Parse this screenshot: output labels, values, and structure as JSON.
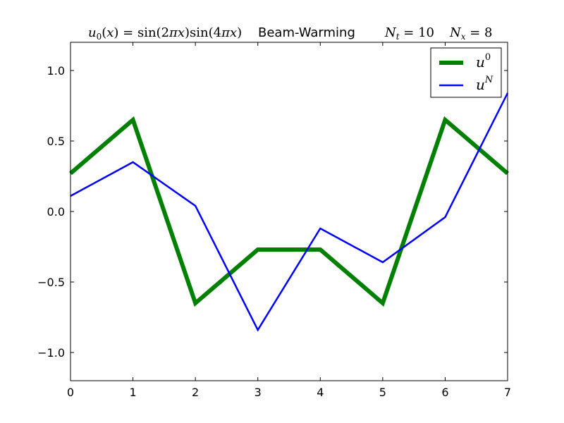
{
  "chart_data": {
    "type": "line",
    "title": {
      "formula": "u0(x) = sin(2πx)sin(4πx)",
      "method": "Beam-Warming",
      "nt": "Nt = 10",
      "nx": "Nx = 8"
    },
    "xlim": [
      0,
      7
    ],
    "ylim": [
      -1.2,
      1.2
    ],
    "xticks": [
      0,
      1,
      2,
      3,
      4,
      5,
      6,
      7
    ],
    "xtick_labels": [
      "0",
      "1",
      "2",
      "3",
      "4",
      "5",
      "6",
      "7"
    ],
    "yticks": [
      -1.0,
      -0.5,
      0.0,
      0.5,
      1.0
    ],
    "ytick_labels": [
      "−1.0",
      "−0.5",
      "0.0",
      "0.5",
      "1.0"
    ],
    "legend": {
      "location": "upper right"
    },
    "series": [
      {
        "name": "u0",
        "color": "#008000",
        "x": [
          0,
          1,
          2,
          3,
          4,
          5,
          6,
          7
        ],
        "y": [
          0.27,
          0.65,
          -0.65,
          -0.27,
          -0.27,
          -0.65,
          0.65,
          0.27
        ]
      },
      {
        "name": "uN",
        "color": "#0000ff",
        "x": [
          0,
          1,
          2,
          3,
          4,
          5,
          6,
          7
        ],
        "y": [
          0.11,
          0.35,
          0.04,
          -0.84,
          -0.12,
          -0.36,
          -0.04,
          0.84
        ]
      }
    ]
  }
}
